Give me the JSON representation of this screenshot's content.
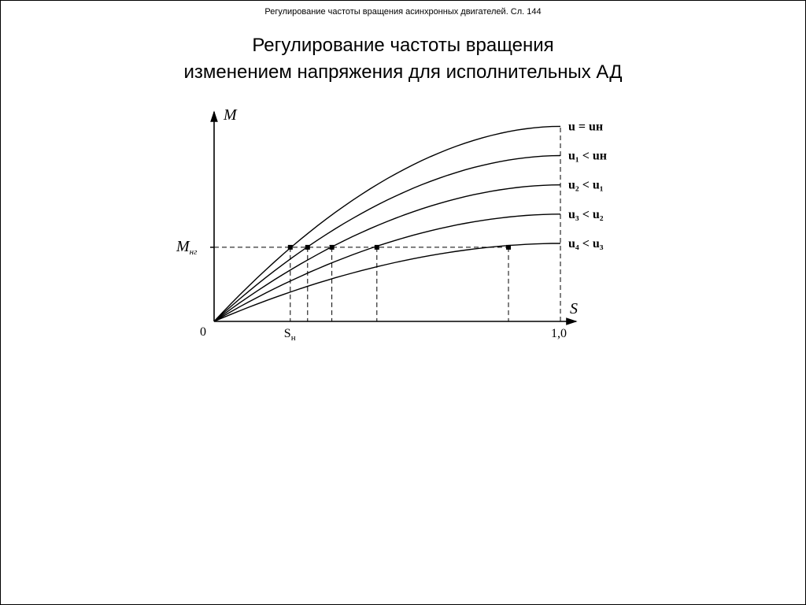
{
  "header": {
    "small_title": "Регулирование частоты вращения асинхронных двигателей. Сл. 144"
  },
  "title_line1": "Регулирование частоты вращения",
  "title_line2": "изменением напряжения для исполнительных АД",
  "chart": {
    "type": "line",
    "background_color": "#ffffff",
    "axis_color": "#000000",
    "line_color": "#000000",
    "line_width": 1.4,
    "dash_pattern": "6,4",
    "y_axis_label": "M",
    "x_axis_label": "S",
    "origin_label": "0",
    "y_tick_label": "Mнг",
    "x_tick_s_n": "Sн",
    "x_tick_one": "1,0",
    "m_ng_value": 0.38,
    "xlim": [
      0,
      1.0
    ],
    "ylim": [
      0,
      1.05
    ],
    "curves": [
      {
        "label": "u = uн",
        "peak": 1.0,
        "intersection_s": 0.22
      },
      {
        "label": "u₁ < uн",
        "peak": 0.85,
        "intersection_s": 0.27
      },
      {
        "label": "u₂ < u₁",
        "peak": 0.7,
        "intersection_s": 0.34
      },
      {
        "label": "u₃ < u₂",
        "peak": 0.55,
        "intersection_s": 0.47
      },
      {
        "label": "u₄ < u₃",
        "peak": 0.4,
        "intersection_s": 0.85
      }
    ],
    "intersection_end_s": 0.85,
    "font_axis_size": 20,
    "font_curve_label_size": 16,
    "font_tick_size": 16
  }
}
